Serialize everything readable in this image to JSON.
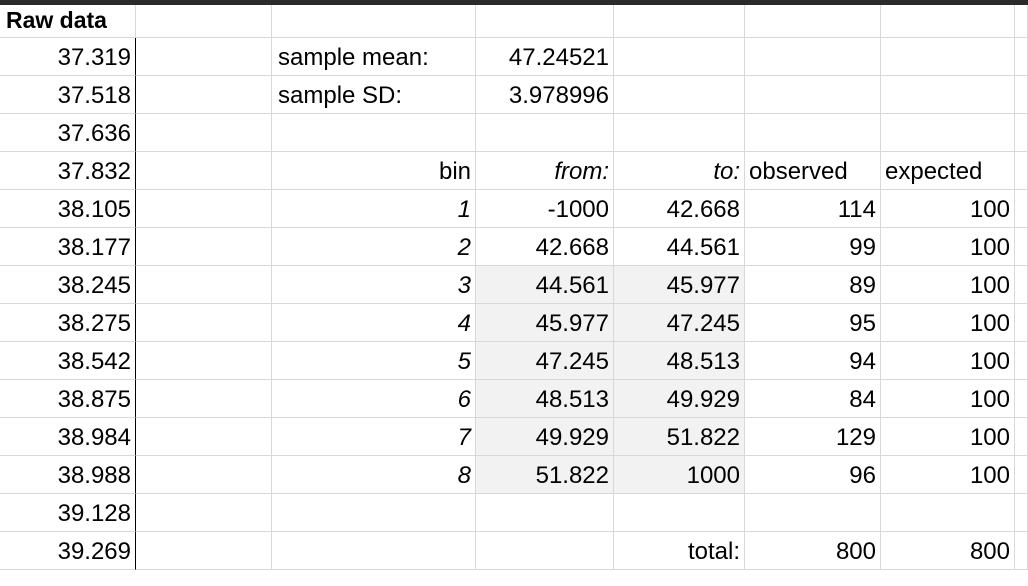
{
  "raw_header": "Raw data",
  "raw_values": [
    "37.319",
    "37.518",
    "37.636",
    "37.832",
    "38.105",
    "38.177",
    "38.245",
    "38.275",
    "38.542",
    "38.875",
    "38.984",
    "38.988",
    "39.128",
    "39.269"
  ],
  "stats": {
    "mean_label": "sample mean:",
    "mean_value": "47.24521",
    "sd_label": "sample SD:",
    "sd_value": "3.978996"
  },
  "table": {
    "headers": {
      "bin": "bin",
      "from": "from:",
      "to": "to:",
      "observed": "observed",
      "expected": "expected"
    },
    "rows": [
      {
        "bin": "1",
        "from": "-1000",
        "to": "42.668",
        "observed": "114",
        "expected": "100"
      },
      {
        "bin": "2",
        "from": "42.668",
        "to": "44.561",
        "observed": "99",
        "expected": "100"
      },
      {
        "bin": "3",
        "from": "44.561",
        "to": "45.977",
        "observed": "89",
        "expected": "100"
      },
      {
        "bin": "4",
        "from": "45.977",
        "to": "47.245",
        "observed": "95",
        "expected": "100"
      },
      {
        "bin": "5",
        "from": "47.245",
        "to": "48.513",
        "observed": "94",
        "expected": "100"
      },
      {
        "bin": "6",
        "from": "48.513",
        "to": "49.929",
        "observed": "84",
        "expected": "100"
      },
      {
        "bin": "7",
        "from": "49.929",
        "to": "51.822",
        "observed": "129",
        "expected": "100"
      },
      {
        "bin": "8",
        "from": "51.822",
        "to": "1000",
        "observed": "96",
        "expected": "100"
      }
    ],
    "total_label": "total:",
    "total_observed": "800",
    "total_expected": "800"
  },
  "colors": {
    "grid": "#d8d8d8",
    "shade": "#f2f2f2",
    "topbar": "#2b2b2b"
  }
}
